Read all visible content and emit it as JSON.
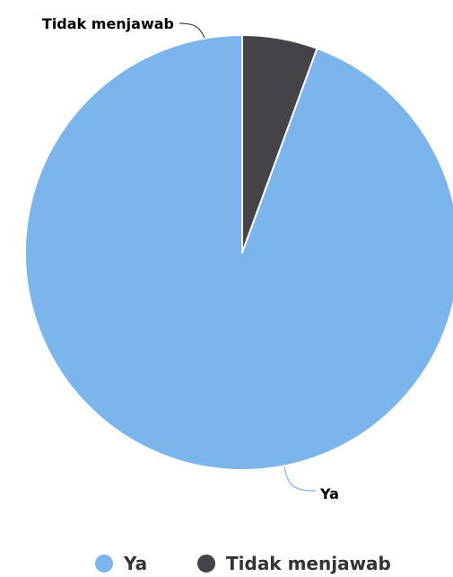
{
  "chart_data": {
    "type": "pie",
    "title": "",
    "categories": [
      "Ya",
      "Tidak menjawab"
    ],
    "values": [
      94.4,
      5.6
    ],
    "colors": [
      "#7cb5ec",
      "#434348"
    ],
    "start_angle_deg": -90,
    "direction": "counterclockwise",
    "legend_position": "bottom-center",
    "data_labels": true
  }
}
